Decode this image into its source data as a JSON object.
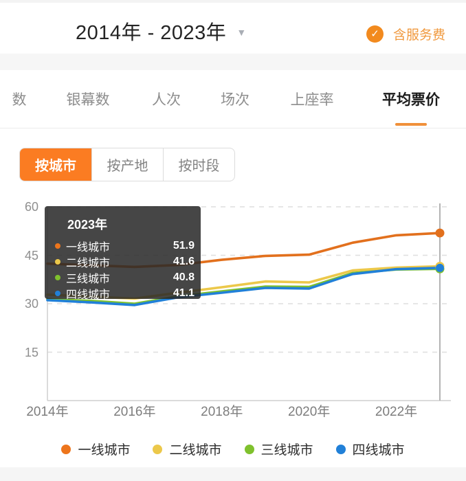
{
  "header": {
    "date_range": "2014年 - 2023年",
    "service_fee": {
      "label": "含服务费",
      "checked": true,
      "check_glyph": "✓"
    },
    "accent_color": "#f28a1e"
  },
  "tabs": {
    "items": [
      {
        "label": "数",
        "active": false,
        "partially_visible": true
      },
      {
        "label": "银幕数",
        "active": false
      },
      {
        "label": "人次",
        "active": false
      },
      {
        "label": "场次",
        "active": false
      },
      {
        "label": "上座率",
        "active": false
      },
      {
        "label": "平均票价",
        "active": true
      }
    ],
    "active_underline_color": "#f0903a"
  },
  "filters": {
    "items": [
      {
        "label": "按城市",
        "active": true
      },
      {
        "label": "按产地",
        "active": false
      },
      {
        "label": "按时段",
        "active": false
      }
    ],
    "active_bg": "#fb7c22"
  },
  "tooltip": {
    "title": "2023年",
    "rows": [
      {
        "label": "一线城市",
        "value": "51.9",
        "color": "#ed751c"
      },
      {
        "label": "二线城市",
        "value": "41.6",
        "color": "#ecc84a"
      },
      {
        "label": "三线城市",
        "value": "40.8",
        "color": "#7fc12d"
      },
      {
        "label": "四线城市",
        "value": "41.1",
        "color": "#2180d8"
      }
    ]
  },
  "chart_data": {
    "type": "line",
    "x": [
      2014,
      2015,
      2016,
      2017,
      2018,
      2019,
      2020,
      2021,
      2022,
      2023
    ],
    "x_tick_years": [
      2014,
      2016,
      2018,
      2020,
      2022
    ],
    "x_tick_labels": [
      "2014年",
      "2016年",
      "2018年",
      "2020年",
      "2022年"
    ],
    "y_ticks": [
      15,
      30,
      45,
      60
    ],
    "ylim": [
      0,
      60
    ],
    "grid": "dashed-horizontal",
    "hover_year": 2023,
    "legend_position": "bottom",
    "series": [
      {
        "name": "三线城市",
        "color": "#7fc12d",
        "end_dot": true,
        "values": [
          31.4,
          30.9,
          30.0,
          32.3,
          33.8,
          35.3,
          35.2,
          39.5,
          40.6,
          40.8
        ]
      },
      {
        "name": "二线城市",
        "color": "#ecc84a",
        "end_dot": true,
        "values": [
          32.8,
          32.2,
          31.6,
          33.4,
          35.1,
          36.9,
          36.6,
          40.3,
          41.2,
          41.6
        ]
      },
      {
        "name": "四线城市",
        "color": "#2180d8",
        "end_dot": true,
        "values": [
          31.1,
          30.4,
          29.6,
          32.0,
          33.4,
          34.9,
          34.7,
          39.2,
          40.7,
          41.1
        ]
      },
      {
        "name": "一线城市",
        "color": "#e2701d",
        "end_dot": true,
        "values": [
          42.4,
          41.9,
          41.4,
          42.0,
          43.6,
          44.8,
          45.2,
          48.9,
          51.2,
          51.9
        ]
      }
    ]
  },
  "legend": {
    "items": [
      {
        "label": "一线城市",
        "color": "#ed751c"
      },
      {
        "label": "二线城市",
        "color": "#ecc84a"
      },
      {
        "label": "三线城市",
        "color": "#7fc12d"
      },
      {
        "label": "四线城市",
        "color": "#2180d8"
      }
    ]
  }
}
